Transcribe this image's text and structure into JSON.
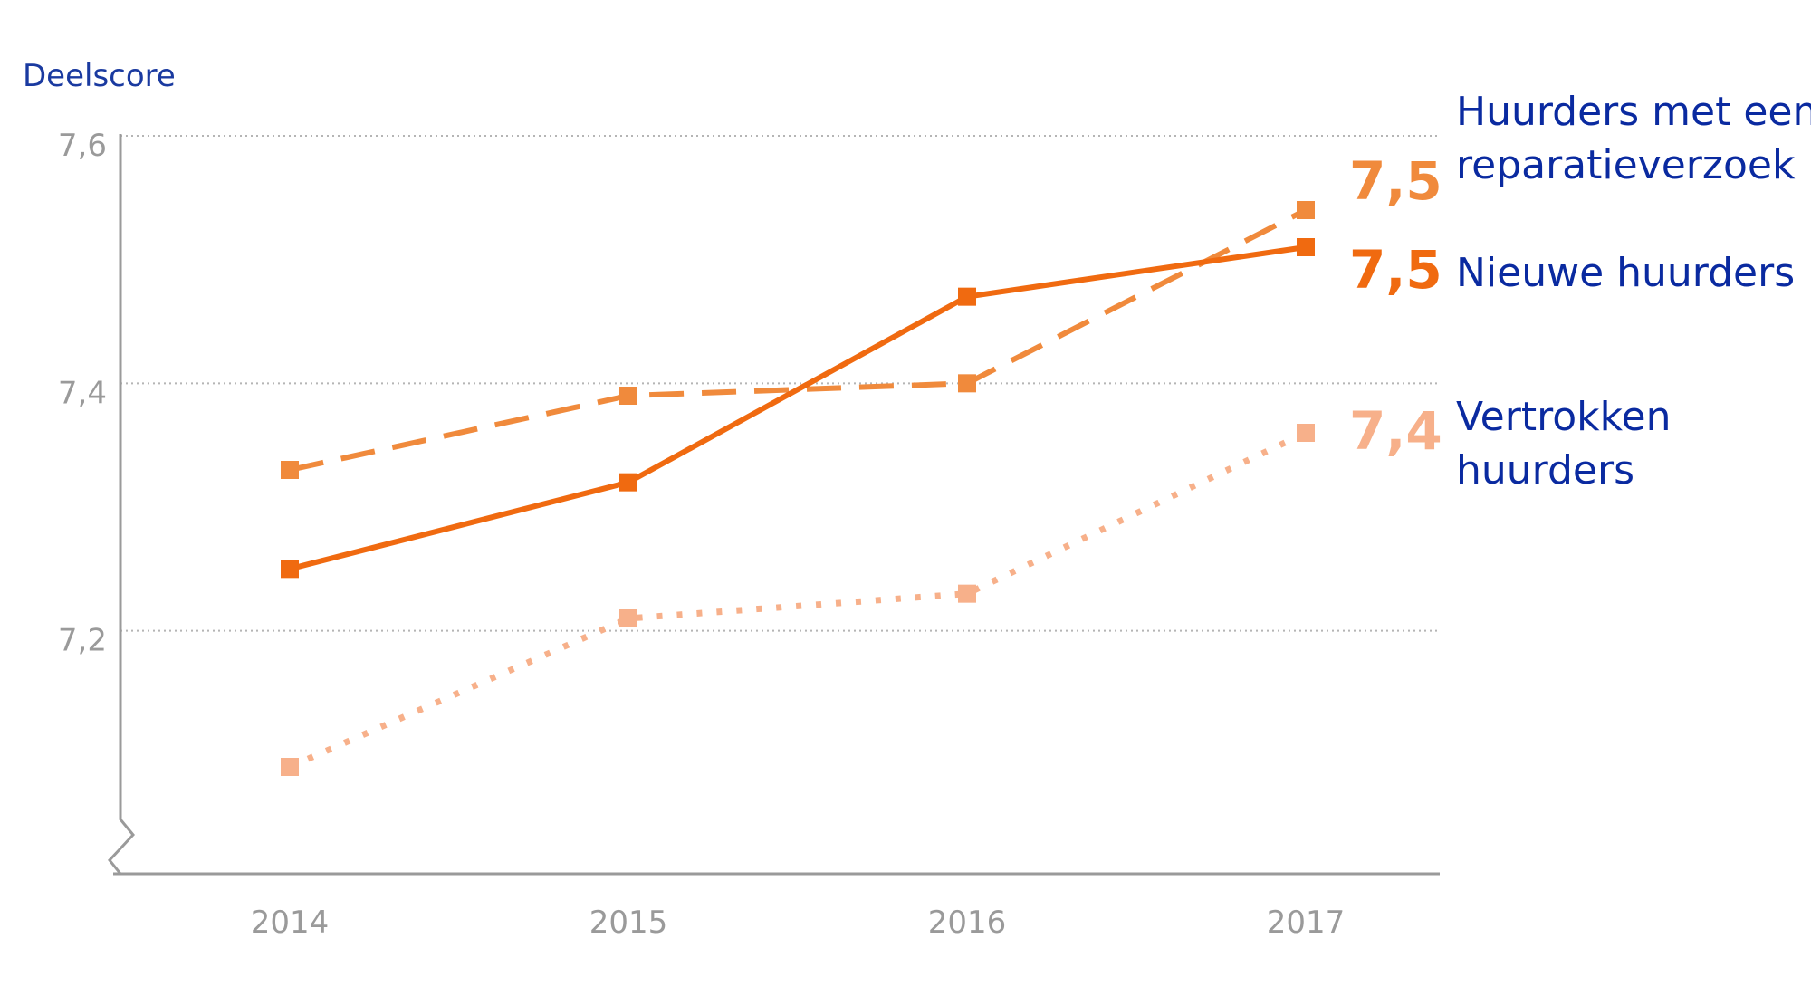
{
  "chart_data": {
    "type": "line",
    "ylabel": "Deelscore",
    "x": [
      "2014",
      "2015",
      "2016",
      "2017"
    ],
    "ylim": [
      7.0,
      7.6
    ],
    "y_ticks": [
      "7,2",
      "7,4",
      "7,6"
    ],
    "y_tick_values": [
      7.2,
      7.4,
      7.6
    ],
    "grid": "horizontal dotted",
    "y_axis_break": true,
    "series": [
      {
        "name": "Huurders met een reparatieverzoek",
        "name_lines": [
          "Huurders met een",
          "reparatieverzoek"
        ],
        "values": [
          7.33,
          7.39,
          7.4,
          7.54
        ],
        "end_label": "7,5",
        "color": "#f08a3c",
        "style": "dashed"
      },
      {
        "name": "Nieuwe huurders",
        "name_lines": [
          "Nieuwe huurders"
        ],
        "values": [
          7.25,
          7.32,
          7.47,
          7.51
        ],
        "end_label": "7,5",
        "color": "#f06a10",
        "style": "solid"
      },
      {
        "name": "Vertrokken huurders",
        "name_lines": [
          "Vertrokken",
          "huurders"
        ],
        "values": [
          7.09,
          7.21,
          7.23,
          7.36
        ],
        "end_label": "7,4",
        "color": "#f7b08a",
        "style": "dotted"
      }
    ]
  }
}
